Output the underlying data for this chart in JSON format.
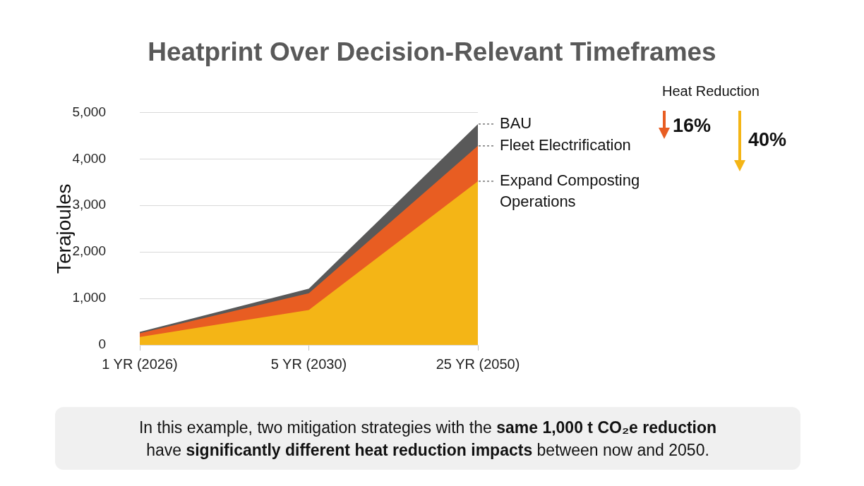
{
  "chart_data": {
    "type": "area",
    "title": "Heatprint Over Decision-Relevant Timeframes",
    "ylabel": "Terajoules",
    "categories": [
      "1 YR (2026)",
      "5 YR (2030)",
      "25 YR (2050)"
    ],
    "series": [
      {
        "name": "BAU",
        "color": "#595959",
        "values": [
          280,
          1210,
          4750
        ]
      },
      {
        "name": "Fleet Electrification",
        "color": "#e85d22",
        "values": [
          250,
          1110,
          4280
        ]
      },
      {
        "name": "Expand Composting Operations",
        "color": "#f4b516",
        "values": [
          170,
          750,
          3520
        ]
      }
    ],
    "ylim": [
      0,
      5000
    ],
    "yticks": [
      0,
      {
        "value": 1000,
        "label": "1,000"
      },
      {
        "value": 2000,
        "label": "2,000"
      },
      {
        "value": 3000,
        "label": "3,000"
      },
      {
        "value": 4000,
        "label": "4,000"
      },
      {
        "value": 5000,
        "label": "5,000"
      }
    ],
    "grid": "y",
    "legend": false,
    "annotations": [
      "Heat Reduction",
      "16%",
      "40%",
      "In this example, two mitigation strategies with the",
      "same 1,000 t CO₂e reduction",
      "have",
      "significantly different heat reduction impacts",
      "between now and 2050."
    ]
  }
}
